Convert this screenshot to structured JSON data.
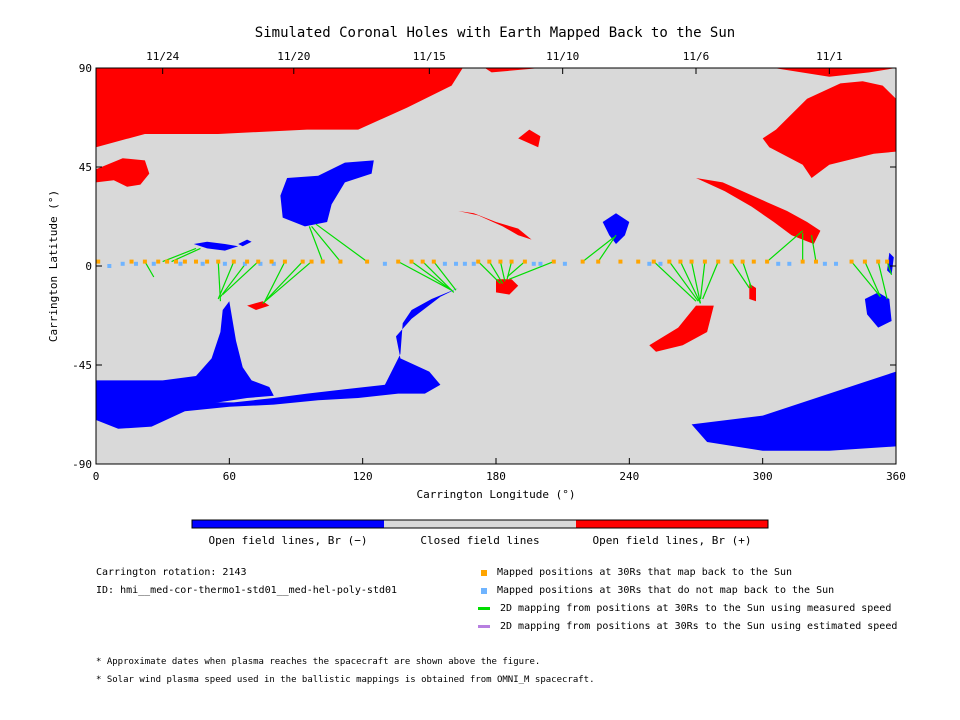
{
  "chart_data": {
    "type": "map",
    "title": "Simulated Coronal Holes with Earth Mapped Back to the Sun",
    "xlabel": "Carrington Longitude (°)",
    "ylabel": "Carrington Latitude (°)",
    "xlim": [
      0,
      360
    ],
    "ylim": [
      -90,
      90
    ],
    "xticks": [
      0,
      60,
      120,
      180,
      240,
      300,
      360
    ],
    "yticks": [
      -90,
      -45,
      0,
      45,
      90
    ],
    "top_axis": [
      {
        "lon": 30,
        "label": "11/24"
      },
      {
        "lon": 89,
        "label": "11/20"
      },
      {
        "lon": 150,
        "label": "11/15"
      },
      {
        "lon": 210,
        "label": "11/10"
      },
      {
        "lon": 270,
        "label": "11/6"
      },
      {
        "lon": 330,
        "label": "11/1"
      }
    ],
    "colors": {
      "closed": "#d9d9d9",
      "open_negative": "#0000ff",
      "open_positive": "#ff0000",
      "mapped": "#ffa500",
      "unmapped": "#6fb4ff",
      "measured_line": "#00dd00",
      "estimated_line": "#b77fe0"
    },
    "regions": {
      "positive": [
        [
          [
            0,
            90
          ],
          [
            165,
            90
          ],
          [
            160,
            82
          ],
          [
            140,
            72
          ],
          [
            118,
            62
          ],
          [
            95,
            62
          ],
          [
            55,
            60
          ],
          [
            22,
            60
          ],
          [
            0,
            54
          ]
        ],
        [
          [
            175,
            90
          ],
          [
            360,
            90
          ],
          [
            360,
            76
          ],
          [
            354,
            82
          ],
          [
            345,
            84
          ],
          [
            335,
            83
          ],
          [
            320,
            76
          ],
          [
            306,
            62
          ],
          [
            300,
            58
          ],
          [
            303,
            54
          ],
          [
            318,
            46
          ],
          [
            322,
            40
          ],
          [
            330,
            46
          ],
          [
            350,
            51
          ],
          [
            360,
            52
          ],
          [
            360,
            90
          ],
          [
            348,
            88
          ],
          [
            330,
            86
          ],
          [
            305,
            90
          ],
          [
            200,
            90
          ],
          [
            178,
            88
          ]
        ],
        [
          [
            270,
            40
          ],
          [
            282,
            38
          ],
          [
            302,
            29
          ],
          [
            311,
            25
          ],
          [
            320,
            20
          ],
          [
            326,
            16
          ],
          [
            323,
            10
          ],
          [
            313,
            14
          ],
          [
            305,
            20
          ],
          [
            295,
            27
          ],
          [
            283,
            34
          ]
        ],
        [
          [
            0,
            44
          ],
          [
            12,
            49
          ],
          [
            22,
            48
          ],
          [
            24,
            42
          ],
          [
            20,
            37
          ],
          [
            14,
            36
          ],
          [
            8,
            39
          ],
          [
            0,
            38
          ]
        ],
        [
          [
            163,
            25
          ],
          [
            172,
            23
          ],
          [
            183,
            18
          ],
          [
            190,
            14
          ],
          [
            196,
            12
          ],
          [
            190,
            17
          ],
          [
            180,
            20
          ],
          [
            170,
            24
          ]
        ],
        [
          [
            262,
            -28
          ],
          [
            270,
            -18
          ],
          [
            278,
            -18
          ],
          [
            275,
            -30
          ],
          [
            264,
            -36
          ],
          [
            252,
            -39
          ],
          [
            249,
            -36
          ]
        ],
        [
          [
            180,
            -6
          ],
          [
            187,
            -6
          ],
          [
            190,
            -9
          ],
          [
            186,
            -13
          ],
          [
            180,
            -12
          ]
        ],
        [
          [
            294,
            -8
          ],
          [
            297,
            -10
          ],
          [
            297,
            -16
          ],
          [
            294,
            -15
          ]
        ],
        [
          [
            68,
            -18
          ],
          [
            75,
            -16
          ],
          [
            78,
            -18
          ],
          [
            72,
            -20
          ]
        ],
        [
          [
            190,
            58
          ],
          [
            199,
            54
          ],
          [
            200,
            59
          ],
          [
            195,
            62
          ]
        ]
      ],
      "negative": [
        [
          [
            0,
            -52
          ],
          [
            30,
            -52
          ],
          [
            45,
            -50
          ],
          [
            52,
            -42
          ],
          [
            56,
            -30
          ],
          [
            57,
            -20
          ],
          [
            60,
            -16
          ],
          [
            63,
            -34
          ],
          [
            66,
            -46
          ],
          [
            70,
            -52
          ],
          [
            78,
            -55
          ],
          [
            80,
            -59
          ],
          [
            68,
            -60
          ],
          [
            55,
            -62
          ],
          [
            30,
            -63
          ],
          [
            15,
            -65
          ],
          [
            0,
            -70
          ]
        ],
        [
          [
            0,
            -70
          ],
          [
            10,
            -74
          ],
          [
            25,
            -73
          ],
          [
            40,
            -66
          ],
          [
            60,
            -64
          ],
          [
            80,
            -63
          ],
          [
            100,
            -61
          ],
          [
            118,
            -60
          ],
          [
            136,
            -58
          ],
          [
            148,
            -58
          ],
          [
            155,
            -54
          ],
          [
            150,
            -48
          ],
          [
            137,
            -42
          ],
          [
            135,
            -32
          ],
          [
            142,
            -24
          ],
          [
            155,
            -14
          ],
          [
            163,
            -10
          ],
          [
            151,
            -15
          ],
          [
            142,
            -20
          ],
          [
            138,
            -26
          ],
          [
            137,
            -40
          ],
          [
            130,
            -54
          ],
          [
            112,
            -56
          ],
          [
            95,
            -58
          ],
          [
            80,
            -60
          ],
          [
            62,
            -62
          ],
          [
            40,
            -62
          ],
          [
            15,
            -62
          ],
          [
            0,
            -60
          ]
        ],
        [
          [
            268,
            -72
          ],
          [
            300,
            -68
          ],
          [
            330,
            -58
          ],
          [
            360,
            -48
          ],
          [
            360,
            -82
          ],
          [
            330,
            -84
          ],
          [
            300,
            -84
          ],
          [
            275,
            -80
          ]
        ],
        [
          [
            86,
            40
          ],
          [
            100,
            41
          ],
          [
            112,
            47
          ],
          [
            125,
            48
          ],
          [
            124,
            42
          ],
          [
            112,
            38
          ],
          [
            106,
            28
          ],
          [
            104,
            20
          ],
          [
            94,
            18
          ],
          [
            84,
            22
          ],
          [
            83,
            32
          ]
        ],
        [
          [
            44,
            10
          ],
          [
            50,
            8
          ],
          [
            58,
            7
          ],
          [
            64,
            9
          ],
          [
            58,
            10
          ],
          [
            50,
            11
          ]
        ],
        [
          [
            64,
            10
          ],
          [
            68,
            12
          ],
          [
            70,
            11
          ],
          [
            66,
            9
          ]
        ],
        [
          [
            234,
            24
          ],
          [
            240,
            20
          ],
          [
            238,
            14
          ],
          [
            234,
            10
          ],
          [
            231,
            14
          ],
          [
            228,
            20
          ]
        ],
        [
          [
            346,
            -15
          ],
          [
            352,
            -12
          ],
          [
            357,
            -15
          ],
          [
            358,
            -25
          ],
          [
            352,
            -28
          ],
          [
            347,
            -22
          ]
        ],
        [
          [
            357,
            6
          ],
          [
            359,
            4
          ],
          [
            358,
            -4
          ],
          [
            356,
            -2
          ]
        ]
      ]
    },
    "mapped_points": [
      [
        1,
        2
      ],
      [
        16,
        2
      ],
      [
        22,
        2
      ],
      [
        28,
        2
      ],
      [
        32,
        2
      ],
      [
        36,
        2
      ],
      [
        40,
        2
      ],
      [
        45,
        2
      ],
      [
        50,
        2
      ],
      [
        55,
        2
      ],
      [
        62,
        2
      ],
      [
        68,
        2
      ],
      [
        73,
        2
      ],
      [
        79,
        2
      ],
      [
        85,
        2
      ],
      [
        93,
        2
      ],
      [
        97,
        2
      ],
      [
        102,
        2
      ],
      [
        110,
        2
      ],
      [
        122,
        2
      ],
      [
        136,
        2
      ],
      [
        142,
        2
      ],
      [
        147,
        2
      ],
      [
        152,
        2
      ],
      [
        172,
        2
      ],
      [
        177,
        2
      ],
      [
        182,
        2
      ],
      [
        187,
        2
      ],
      [
        193,
        2
      ],
      [
        206,
        2
      ],
      [
        219,
        2
      ],
      [
        226,
        2
      ],
      [
        236,
        2
      ],
      [
        244,
        2
      ],
      [
        251,
        2
      ],
      [
        258,
        2
      ],
      [
        263,
        2
      ],
      [
        268,
        2
      ],
      [
        274,
        2
      ],
      [
        280,
        2
      ],
      [
        286,
        2
      ],
      [
        291,
        2
      ],
      [
        296,
        2
      ],
      [
        302,
        2
      ],
      [
        318,
        2
      ],
      [
        324,
        2
      ],
      [
        340,
        2
      ],
      [
        346,
        2
      ],
      [
        352,
        2
      ],
      [
        356,
        2
      ]
    ],
    "unmapped_points": [
      [
        6,
        0
      ],
      [
        12,
        1
      ],
      [
        18,
        1
      ],
      [
        26,
        1
      ],
      [
        38,
        1
      ],
      [
        48,
        1
      ],
      [
        58,
        1
      ],
      [
        67,
        1
      ],
      [
        74,
        1
      ],
      [
        80,
        1
      ],
      [
        130,
        1
      ],
      [
        157,
        1
      ],
      [
        162,
        1
      ],
      [
        166,
        1
      ],
      [
        170,
        1
      ],
      [
        197,
        1
      ],
      [
        200,
        1
      ],
      [
        211,
        1
      ],
      [
        249,
        1
      ],
      [
        254,
        1
      ],
      [
        307,
        1
      ],
      [
        312,
        1
      ],
      [
        328,
        1
      ],
      [
        333,
        1
      ]
    ],
    "measured_lines": [
      [
        [
          30,
          2
        ],
        [
          45,
          8
        ]
      ],
      [
        [
          34,
          2
        ],
        [
          47,
          8
        ]
      ],
      [
        [
          22,
          2
        ],
        [
          26,
          -5
        ]
      ],
      [
        [
          62,
          2
        ],
        [
          55,
          -15
        ]
      ],
      [
        [
          68,
          2
        ],
        [
          56,
          -14
        ]
      ],
      [
        [
          73,
          2
        ],
        [
          57,
          -13
        ]
      ],
      [
        [
          55,
          2
        ],
        [
          56,
          -16
        ]
      ],
      [
        [
          85,
          2
        ],
        [
          76,
          -16
        ]
      ],
      [
        [
          93,
          2
        ],
        [
          77,
          -15
        ]
      ],
      [
        [
          97,
          2
        ],
        [
          75,
          -17
        ]
      ],
      [
        [
          102,
          2
        ],
        [
          96,
          18
        ]
      ],
      [
        [
          110,
          2
        ],
        [
          97,
          18
        ]
      ],
      [
        [
          122,
          2
        ],
        [
          99,
          19
        ]
      ],
      [
        [
          136,
          2
        ],
        [
          160,
          -11
        ]
      ],
      [
        [
          142,
          2
        ],
        [
          160,
          -11
        ]
      ],
      [
        [
          147,
          2
        ],
        [
          161,
          -12
        ]
      ],
      [
        [
          152,
          2
        ],
        [
          162,
          -11
        ]
      ],
      [
        [
          172,
          2
        ],
        [
          182,
          -8
        ]
      ],
      [
        [
          177,
          2
        ],
        [
          183,
          -8
        ]
      ],
      [
        [
          182,
          2
        ],
        [
          184,
          -7
        ]
      ],
      [
        [
          187,
          2
        ],
        [
          185,
          -6
        ]
      ],
      [
        [
          193,
          2
        ],
        [
          185,
          -5
        ]
      ],
      [
        [
          206,
          2
        ],
        [
          186,
          -6
        ]
      ],
      [
        [
          226,
          2
        ],
        [
          234,
          14
        ]
      ],
      [
        [
          219,
          2
        ],
        [
          233,
          13
        ]
      ],
      [
        [
          251,
          2
        ],
        [
          270,
          -16
        ]
      ],
      [
        [
          258,
          2
        ],
        [
          271,
          -16
        ]
      ],
      [
        [
          263,
          2
        ],
        [
          272,
          -17
        ]
      ],
      [
        [
          268,
          2
        ],
        [
          272,
          -17
        ]
      ],
      [
        [
          274,
          2
        ],
        [
          272,
          -15
        ]
      ],
      [
        [
          280,
          2
        ],
        [
          273,
          -15
        ]
      ],
      [
        [
          286,
          2
        ],
        [
          294,
          -10
        ]
      ],
      [
        [
          291,
          2
        ],
        [
          295,
          -10
        ]
      ],
      [
        [
          302,
          2
        ],
        [
          318,
          16
        ]
      ],
      [
        [
          318,
          2
        ],
        [
          318,
          15
        ]
      ],
      [
        [
          324,
          2
        ],
        [
          322,
          14
        ]
      ],
      [
        [
          340,
          2
        ],
        [
          353,
          -14
        ]
      ],
      [
        [
          346,
          2
        ],
        [
          353,
          -14
        ]
      ],
      [
        [
          352,
          2
        ],
        [
          356,
          -15
        ]
      ],
      [
        [
          356,
          2
        ],
        [
          358,
          -4
        ]
      ]
    ]
  },
  "colorbar": {
    "label_negative": "Open field lines, Br (−)",
    "label_closed": "Closed field lines",
    "label_positive": "Open field lines, Br (+)"
  },
  "info": {
    "rotation": "Carrington rotation: 2143",
    "id": "ID: hmi__med-cor-thermo1-std01__med-hel-poly-std01"
  },
  "legend": {
    "mapped": "Mapped positions at 30Rs that map back to the Sun",
    "unmapped": "Mapped positions at 30Rs that do not map back to the Sun",
    "measured": "2D mapping from positions at 30Rs to the Sun using measured speed",
    "estimated": "2D mapping from positions at 30Rs to the Sun using estimated speed"
  },
  "notes": {
    "dates": "* Approximate dates when plasma reaches the spacecraft are shown above the figure.",
    "speed": "* Solar wind plasma speed used in the ballistic mappings is obtained from OMNI_M spacecraft."
  }
}
